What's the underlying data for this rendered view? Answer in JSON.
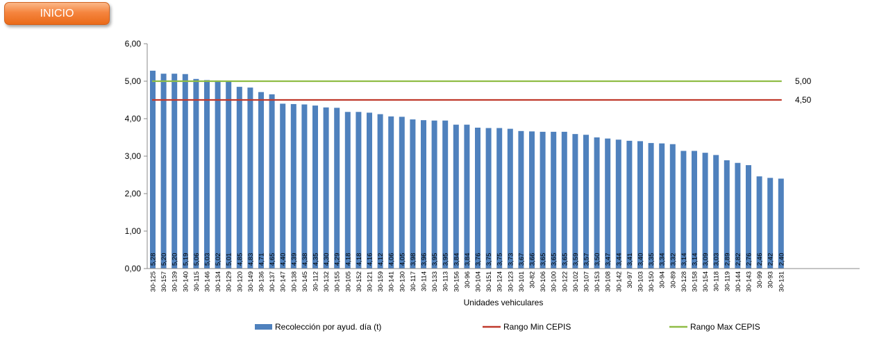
{
  "header": {
    "inicio_label": "INICIO"
  },
  "colors": {
    "bar": "#4f81bd",
    "min_line": "#c0392b",
    "max_line": "#8fbc45",
    "button": "#f58b45"
  },
  "chart_data": {
    "type": "bar",
    "xlabel": "Unidades vehiculares",
    "ylabel": "",
    "ylim": [
      0,
      6
    ],
    "yticks": [
      "0,00",
      "1,00",
      "2,00",
      "3,00",
      "4,00",
      "5,00",
      "6,00"
    ],
    "grid": false,
    "legend_position": "bottom",
    "categories": [
      "30-125",
      "30-157",
      "30-139",
      "30-140",
      "30-115",
      "30-146",
      "30-134",
      "30-129",
      "30-120",
      "30-149",
      "30-136",
      "30-137",
      "30-147",
      "30-138",
      "30-145",
      "30-112",
      "30-132",
      "30-155",
      "30-105",
      "30-152",
      "30-121",
      "30-159",
      "30-141",
      "30-130",
      "30-117",
      "30-114",
      "30-133",
      "30-113",
      "30-156",
      "30-96",
      "30-104",
      "30-151",
      "30-124",
      "30-123",
      "30-101",
      "30-82",
      "30-106",
      "30-100",
      "30-122",
      "30-102",
      "30-107",
      "30-153",
      "30-108",
      "30-142",
      "30-97",
      "30-103",
      "30-150",
      "30-94",
      "30-89",
      "30-128",
      "30-158",
      "30-154",
      "30-118",
      "30-119",
      "30-144",
      "30-143",
      "30-99",
      "30-93",
      "30-131"
    ],
    "series": [
      {
        "name": "Recolección por ayud. día (t)",
        "values": [
          5.28,
          5.2,
          5.2,
          5.19,
          5.06,
          5.03,
          5.02,
          5.01,
          4.85,
          4.83,
          4.71,
          4.65,
          4.4,
          4.39,
          4.38,
          4.35,
          4.3,
          4.29,
          4.18,
          4.18,
          4.16,
          4.12,
          4.06,
          4.05,
          3.98,
          3.96,
          3.95,
          3.95,
          3.84,
          3.84,
          3.76,
          3.75,
          3.75,
          3.73,
          3.67,
          3.66,
          3.65,
          3.65,
          3.65,
          3.59,
          3.57,
          3.5,
          3.47,
          3.44,
          3.41,
          3.4,
          3.35,
          3.34,
          3.32,
          3.14,
          3.14,
          3.09,
          3.03,
          2.89,
          2.82,
          2.76,
          2.46,
          2.42,
          2.4
        ],
        "labels": [
          "5,28",
          "5,20",
          "5,20",
          "5,19",
          "5,06",
          "5,03",
          "5,02",
          "5,01",
          "4,85",
          "4,83",
          "4,71",
          "4,65",
          "4,40",
          "4,39",
          "4,38",
          "4,35",
          "4,30",
          "4,29",
          "4,18",
          "4,18",
          "4,16",
          "4,12",
          "4,06",
          "4,05",
          "3,98",
          "3,96",
          "3,95",
          "3,95",
          "3,84",
          "3,84",
          "3,76",
          "3,75",
          "3,75",
          "3,73",
          "3,67",
          "3,66",
          "3,65",
          "3,65",
          "3,65",
          "3,59",
          "3,57",
          "3,50",
          "3,47",
          "3,44",
          "3,41",
          "3,40",
          "3,35",
          "3,34",
          "3,32",
          "3,14",
          "3,14",
          "3,09",
          "3,03",
          "2,89",
          "2,82",
          "2,76",
          "2,46",
          "2,42",
          "2,40"
        ]
      }
    ],
    "reference_lines": [
      {
        "name": "Rango Max CEPIS",
        "value": 5.0,
        "label": "5,00"
      },
      {
        "name": "Rango Min CEPIS",
        "value": 4.5,
        "label": "4,50"
      }
    ]
  }
}
